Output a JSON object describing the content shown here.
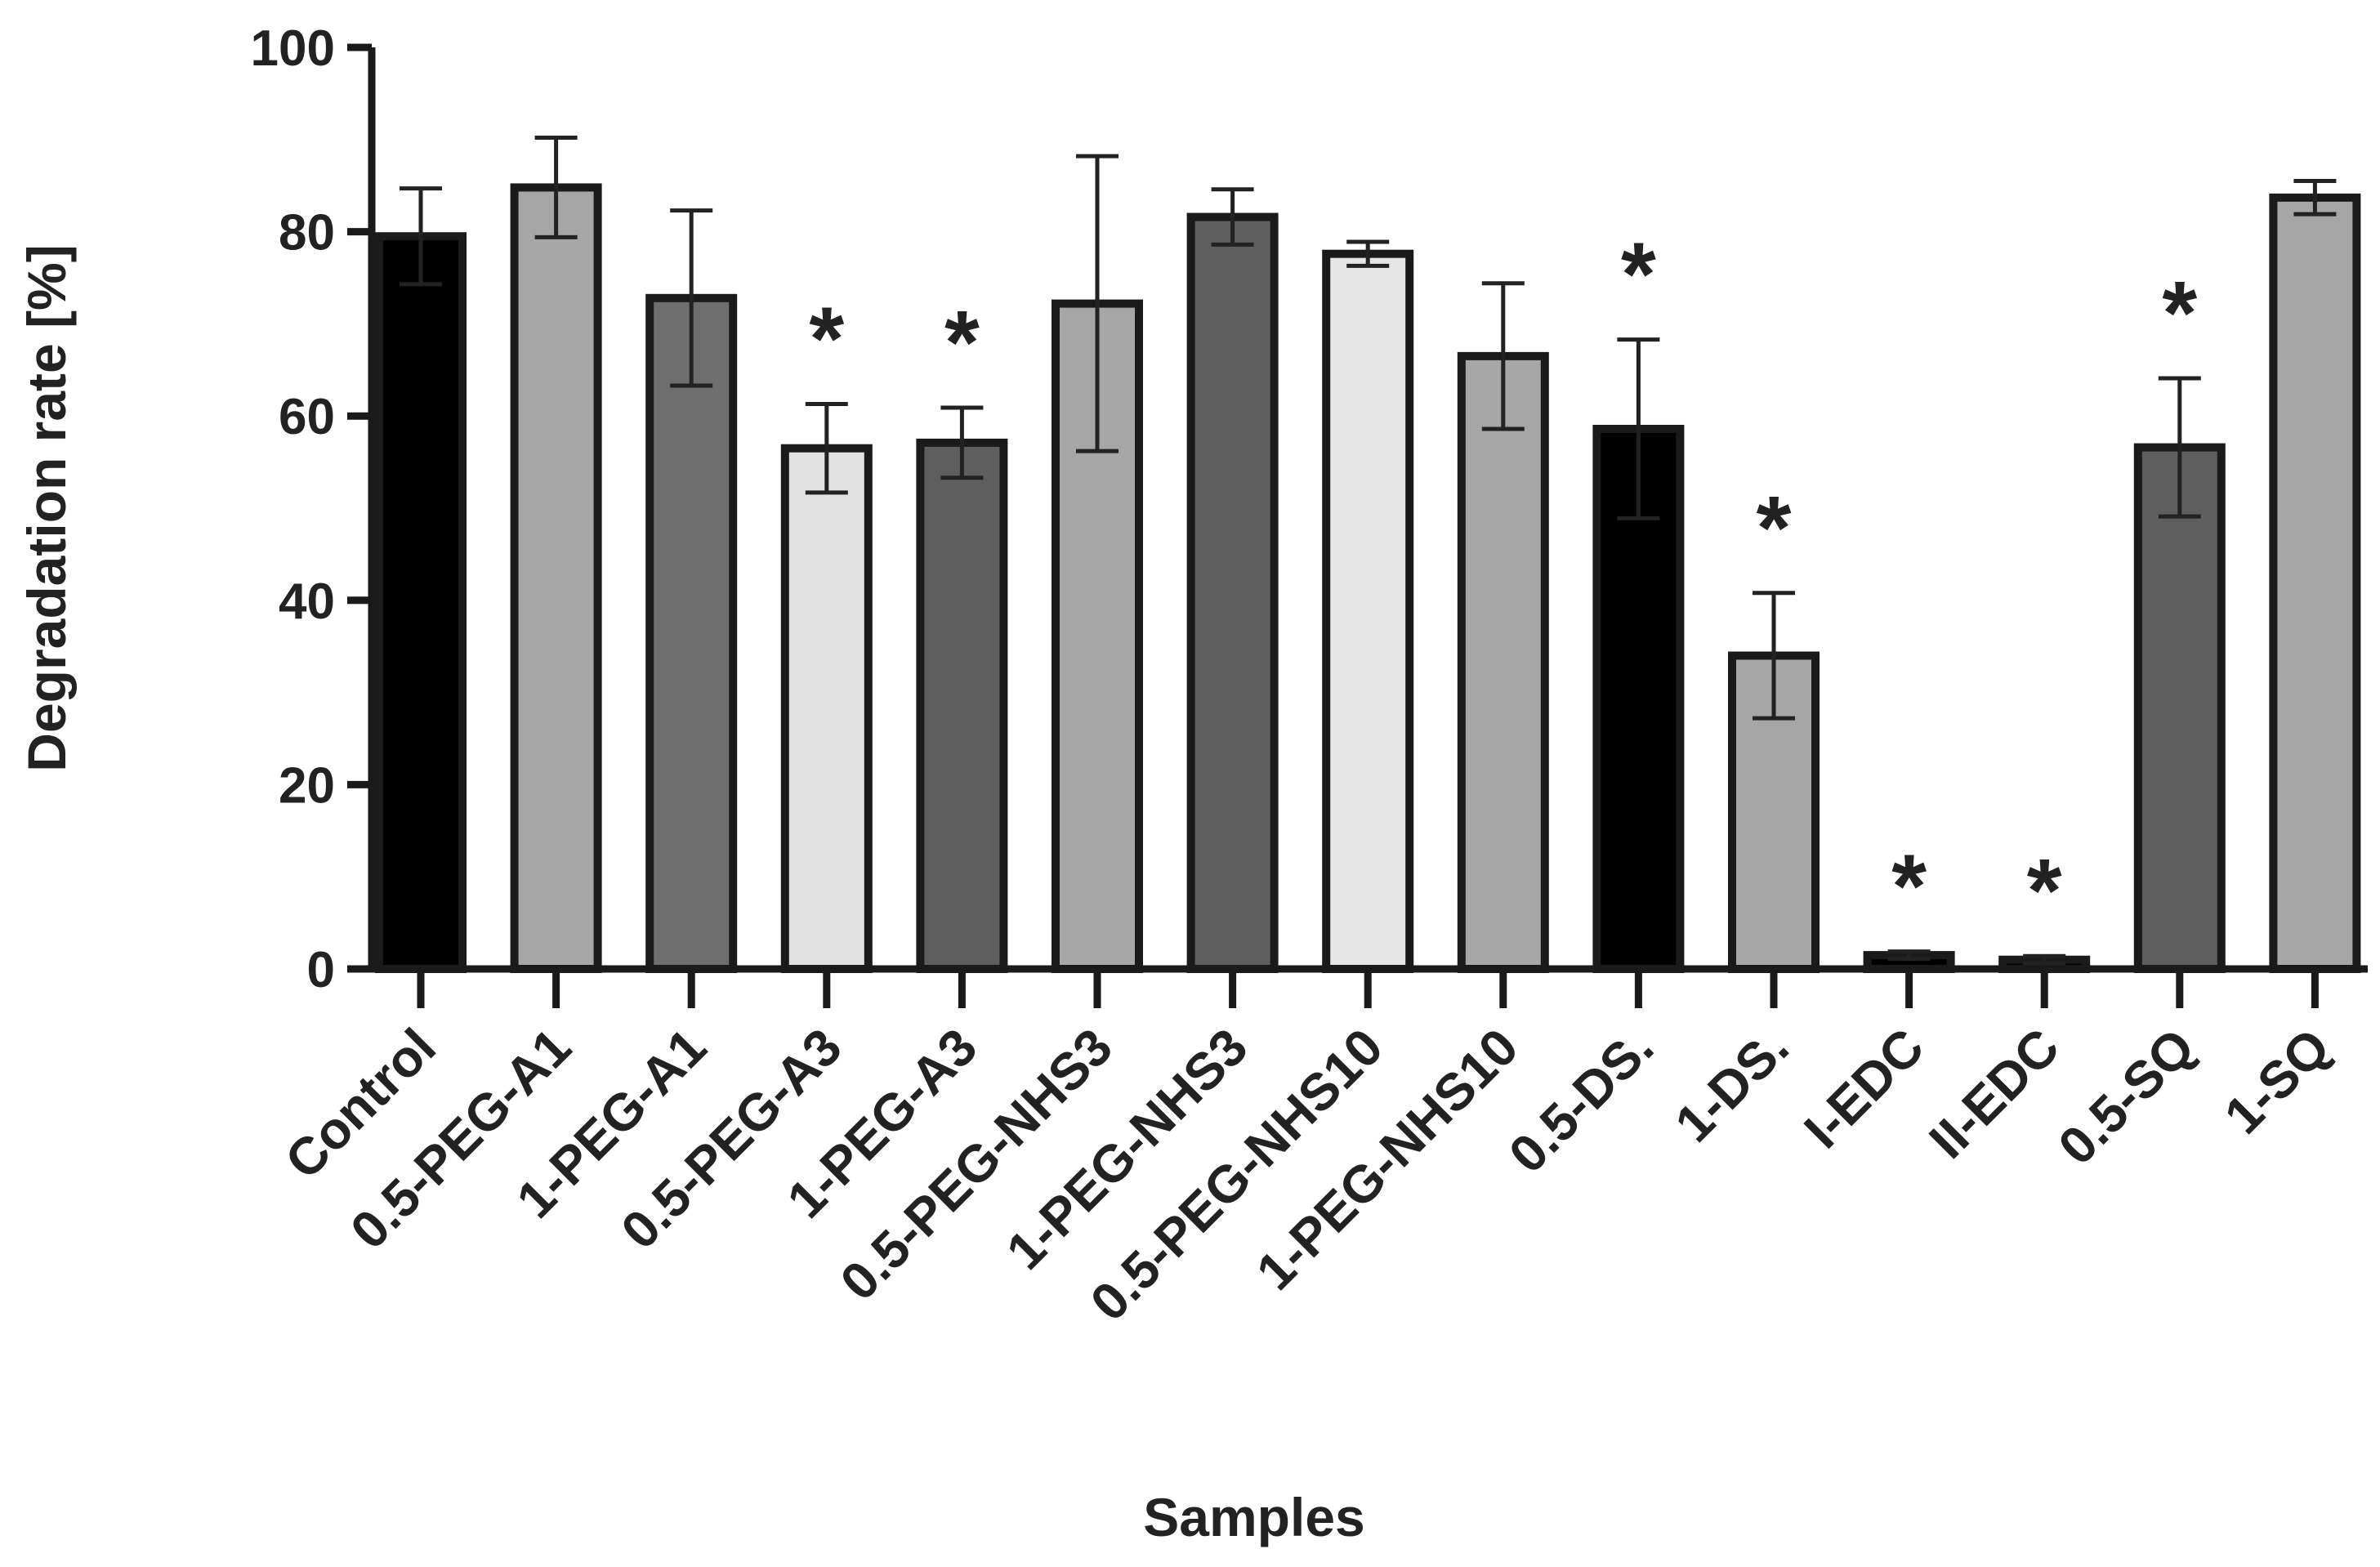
{
  "chart_data": {
    "type": "bar",
    "title": "",
    "xlabel": "Samples",
    "ylabel": "Degradation rate [%]",
    "ylim": [
      0,
      100
    ],
    "yticks": [
      "0",
      "20",
      "40",
      "60",
      "80",
      "100"
    ],
    "categories": [
      "Control",
      "0.5-PEG-A1",
      "1-PEG-A1",
      "0.5-PEG-A3",
      "1-PEG-A3",
      "0.5-PEG-NHS3",
      "1-PEG-NHS3",
      "0.5-PEG-NHS10",
      "1-PEG-NHS10",
      "0.5-DS.",
      "1-DS.",
      "I-EDC",
      "II-EDC",
      "0.5-SQ",
      "1-SQ"
    ],
    "values": [
      79.5,
      84.8,
      72.8,
      56.5,
      57.1,
      72.2,
      81.6,
      77.6,
      66.5,
      58.6,
      34.0,
      1.5,
      1.0,
      56.6,
      83.7
    ],
    "errors": [
      5.2,
      5.4,
      9.5,
      4.8,
      3.8,
      16.0,
      3.0,
      1.3,
      7.9,
      9.7,
      6.8,
      0.4,
      0.4,
      7.5,
      1.8
    ],
    "fills": [
      "#000000",
      "#a6a6a6",
      "#6e6e6e",
      "#e2e2e2",
      "#5e5e5e",
      "#a6a6a6",
      "#5e5e5e",
      "#e6e6e6",
      "#a6a6a6",
      "#000000",
      "#a6a6a6",
      "#000000",
      "#000000",
      "#5e5e5e",
      "#a6a6a6"
    ],
    "significance": [
      "",
      "",
      "",
      "*",
      "*",
      "",
      "",
      "",
      "",
      "*",
      "*",
      "*",
      "*",
      "*",
      ""
    ]
  }
}
